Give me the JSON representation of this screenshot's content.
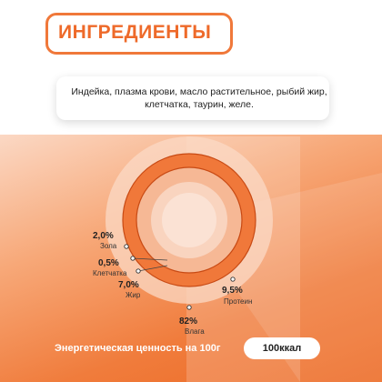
{
  "title": "ИНГРЕДИЕНТЫ",
  "ingredients": "Индейка, плазма крови, масло растительное, рыбий жир, клетчатка, таурин, желе.",
  "chart_data": {
    "type": "pie",
    "title": "",
    "slices": [
      {
        "label": "Протеин",
        "value": 9.5,
        "display": "9,5%"
      },
      {
        "label": "Жир",
        "value": 7.0,
        "display": "7,0%"
      },
      {
        "label": "Клетчатка",
        "value": 0.5,
        "display": "0,5%"
      },
      {
        "label": "Зола",
        "value": 2.0,
        "display": "2,0%"
      },
      {
        "label": "Влага",
        "value": 82,
        "display": "82%"
      }
    ],
    "colors": {
      "ring": "#f0783a",
      "ring_dark": "#e05a1c",
      "inner": "#f7c3a6"
    }
  },
  "energy": {
    "label": "Энергетическая ценность на 100г",
    "value": "100ккал"
  }
}
